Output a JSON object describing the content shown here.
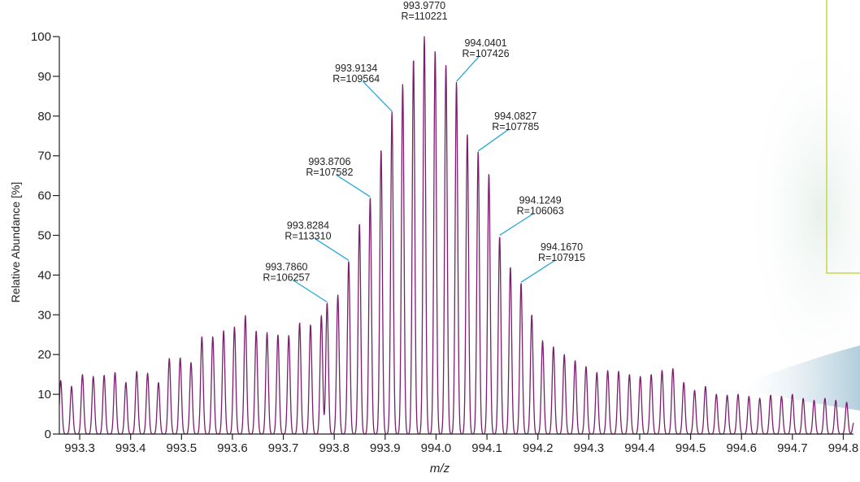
{
  "chart_data": {
    "type": "line",
    "xlabel": "m/z",
    "ylabel": "Relative Abundance [%]",
    "xlim": [
      993.26,
      994.82
    ],
    "ylim": [
      0,
      100
    ],
    "xticks": [
      "993.3",
      "993.4",
      "993.5",
      "993.6",
      "993.7",
      "993.8",
      "993.9",
      "994.0",
      "994.1",
      "994.2",
      "994.3",
      "994.4",
      "994.5",
      "994.6",
      "994.7",
      "994.8"
    ],
    "yticks": [
      "0",
      "10",
      "20",
      "30",
      "40",
      "50",
      "60",
      "70",
      "80",
      "90",
      "100"
    ],
    "peak_spacing": 0.02133,
    "peak_width": 0.0025,
    "peaks": [
      [
        993.2627,
        13.5
      ],
      [
        993.284,
        12.0
      ],
      [
        993.3054,
        15.0
      ],
      [
        993.3267,
        14.5
      ],
      [
        993.348,
        14.8
      ],
      [
        993.3694,
        15.5
      ],
      [
        993.3907,
        13.0
      ],
      [
        993.412,
        15.8
      ],
      [
        993.4334,
        15.3
      ],
      [
        993.4547,
        13.0
      ],
      [
        993.476,
        19.0
      ],
      [
        993.4974,
        19.2
      ],
      [
        993.5187,
        18.0
      ],
      [
        993.54,
        24.5
      ],
      [
        993.5614,
        24.5
      ],
      [
        993.5827,
        26.0
      ],
      [
        993.604,
        27.0
      ],
      [
        993.6254,
        29.8
      ],
      [
        993.6467,
        26.0
      ],
      [
        993.668,
        25.5
      ],
      [
        993.6894,
        25.0
      ],
      [
        993.7107,
        24.8
      ],
      [
        993.732,
        28.0
      ],
      [
        993.7534,
        27.5
      ],
      [
        993.7747,
        29.8
      ],
      [
        993.786,
        33.0
      ],
      [
        993.8071,
        35.0
      ],
      [
        993.8284,
        43.5
      ],
      [
        993.8495,
        53.0
      ],
      [
        993.8706,
        59.5
      ],
      [
        993.892,
        71.5
      ],
      [
        993.9134,
        81.0
      ],
      [
        993.9345,
        88.0
      ],
      [
        993.9557,
        94.5
      ],
      [
        993.977,
        100.0
      ],
      [
        993.9982,
        96.5
      ],
      [
        994.0194,
        93.0
      ],
      [
        994.0401,
        88.5
      ],
      [
        994.0614,
        75.5
      ],
      [
        994.0827,
        71.0
      ],
      [
        994.1038,
        65.5
      ],
      [
        994.1249,
        49.8
      ],
      [
        994.146,
        42.0
      ],
      [
        994.167,
        38.0
      ],
      [
        994.188,
        30.0
      ],
      [
        994.2093,
        23.5
      ],
      [
        994.2306,
        22.0
      ],
      [
        994.2519,
        20.0
      ],
      [
        994.2732,
        18.5
      ],
      [
        994.2946,
        17.0
      ],
      [
        994.3159,
        15.5
      ],
      [
        994.3372,
        16.0
      ],
      [
        994.3586,
        15.8
      ],
      [
        994.3799,
        15.0
      ],
      [
        994.4012,
        14.5
      ],
      [
        994.4226,
        15.0
      ],
      [
        994.4439,
        16.0
      ],
      [
        994.4652,
        16.5
      ],
      [
        994.4866,
        13.0
      ],
      [
        994.5079,
        11.0
      ],
      [
        994.5292,
        12.0
      ],
      [
        994.5506,
        10.0
      ],
      [
        994.5719,
        9.8
      ],
      [
        994.5932,
        10.0
      ],
      [
        994.6146,
        9.5
      ],
      [
        994.6359,
        9.0
      ],
      [
        994.6572,
        9.8
      ],
      [
        994.6786,
        9.5
      ],
      [
        994.6999,
        10.0
      ],
      [
        994.7212,
        9.0
      ],
      [
        994.7426,
        8.5
      ],
      [
        994.7639,
        9.0
      ],
      [
        994.7852,
        8.5
      ],
      [
        994.8066,
        8.0
      ],
      [
        994.8209,
        3.0
      ]
    ],
    "annotations": [
      {
        "mz": "993.9770",
        "r": "R=110221",
        "x": 993.977,
        "y": 100.0
      },
      {
        "mz": "993.9134",
        "r": "R=109564",
        "x": 993.9134,
        "y": 81.0
      },
      {
        "mz": "994.0401",
        "r": "R=107426",
        "x": 994.0401,
        "y": 88.5
      },
      {
        "mz": "993.8706",
        "r": "R=107582",
        "x": 993.8706,
        "y": 59.5
      },
      {
        "mz": "994.0827",
        "r": "R=107785",
        "x": 994.0827,
        "y": 71.0
      },
      {
        "mz": "993.8284",
        "r": "R=113310",
        "x": 993.8284,
        "y": 43.5
      },
      {
        "mz": "994.1249",
        "r": "R=106063",
        "x": 994.1249,
        "y": 49.8
      },
      {
        "mz": "993.7860",
        "r": "R=106257",
        "x": 993.786,
        "y": 33.0
      },
      {
        "mz": "994.1670",
        "r": "R=107915",
        "x": 994.167,
        "y": 38.0
      }
    ],
    "grid": false,
    "colors": {
      "trace": "#7a1f6e",
      "leader": "#2aa8d8",
      "axis": "#222222",
      "legend_box_border": "#c8d84a"
    }
  }
}
